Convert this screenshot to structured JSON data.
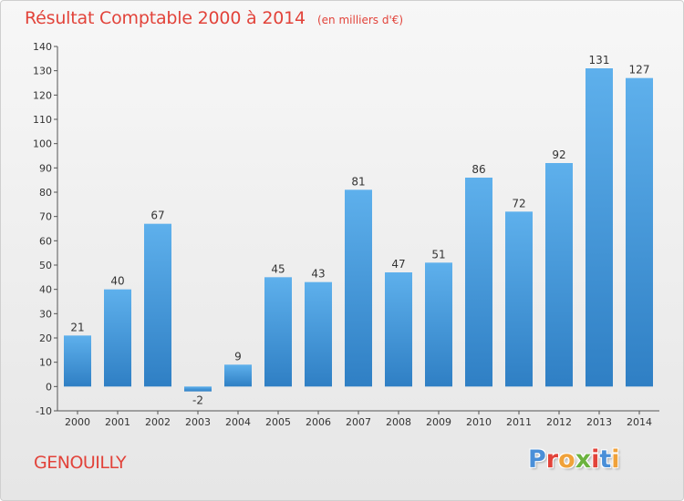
{
  "header": {
    "title": "Résultat Comptable 2000 à 2014",
    "subtitle": "(en milliers d'€)"
  },
  "footer": {
    "town": "GENOUILLY",
    "brand": "Proxiti",
    "brand_colors": [
      "#4a8fd8",
      "#e2433a",
      "#f0a23a",
      "#6cb33f",
      "#e2433a",
      "#4a8fd8",
      "#f0a23a"
    ]
  },
  "colors": {
    "accent_text": "#e2433a",
    "bar_top": "#5eb0ec",
    "bar_bottom": "#2f7fc4"
  },
  "chart_data": {
    "type": "bar",
    "title": "Résultat Comptable 2000 à 2014",
    "subtitle": "(en milliers d'€)",
    "xlabel": "",
    "ylabel": "",
    "ylim": [
      -10,
      140
    ],
    "yticks": [
      -10,
      0,
      10,
      20,
      30,
      40,
      50,
      60,
      70,
      80,
      90,
      100,
      110,
      120,
      130,
      140
    ],
    "grid": false,
    "categories": [
      "2000",
      "2001",
      "2002",
      "2003",
      "2004",
      "2005",
      "2006",
      "2007",
      "2008",
      "2009",
      "2010",
      "2011",
      "2012",
      "2013",
      "2014"
    ],
    "values": [
      21,
      40,
      67,
      -2,
      9,
      45,
      43,
      81,
      47,
      51,
      86,
      72,
      92,
      131,
      127
    ]
  }
}
